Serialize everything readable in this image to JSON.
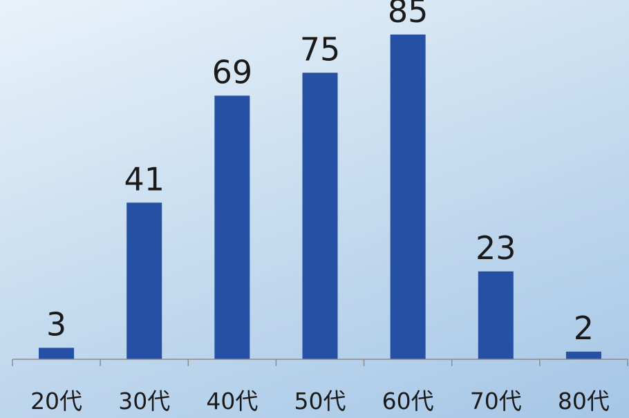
{
  "chart_data": {
    "type": "bar",
    "categories": [
      "20代",
      "30代",
      "40代",
      "50代",
      "60代",
      "70代",
      "80代"
    ],
    "values": [
      3,
      41,
      69,
      75,
      85,
      23,
      2
    ],
    "title": "",
    "xlabel": "",
    "ylabel": "",
    "ylim": [
      0,
      85
    ],
    "grid": false,
    "legend": "none",
    "show_value_labels": true,
    "bar_color": "#2550a3",
    "background_gradient": [
      "#e9f2fa",
      "#a6c6e6"
    ]
  }
}
